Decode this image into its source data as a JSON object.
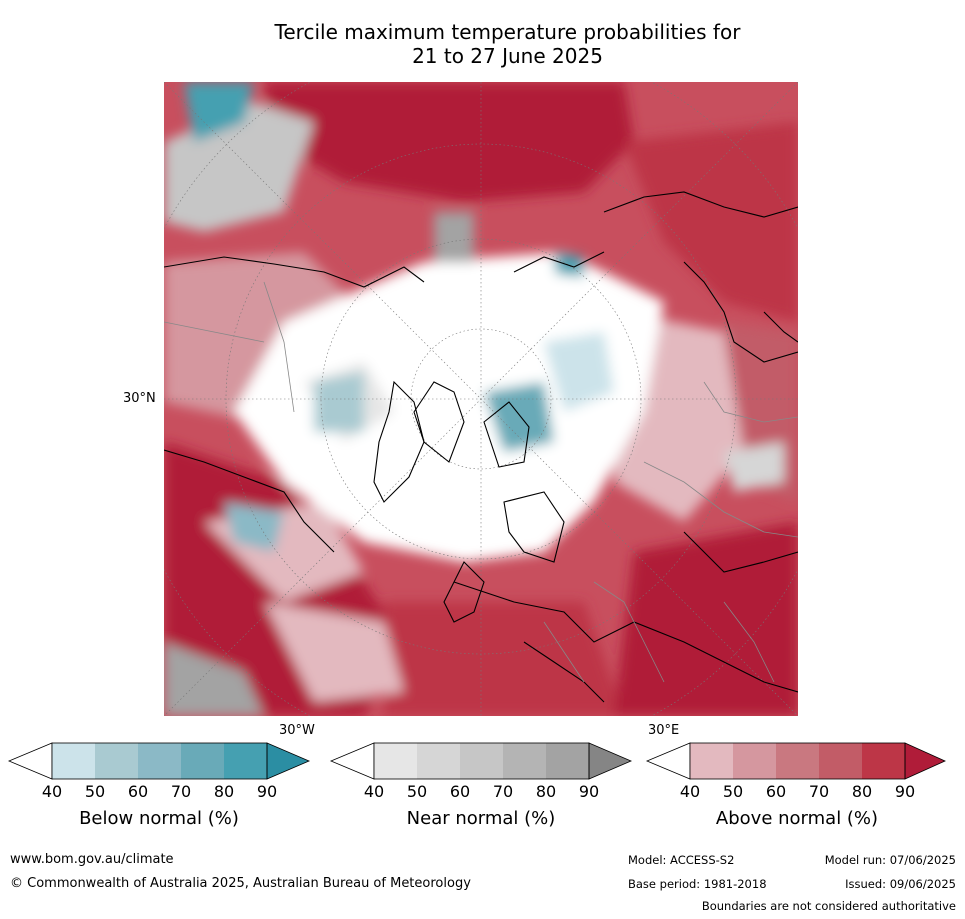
{
  "title": {
    "line1": "Tercile maximum temperature probabilities for",
    "line2": "21 to 27 June 2025"
  },
  "map": {
    "projection": "north polar stereographic",
    "lat_label": "30°N",
    "lon_labels": {
      "west": "30°W",
      "east": "30°E"
    }
  },
  "legends": [
    {
      "title": "Below normal (%)",
      "ticks": [
        "40",
        "50",
        "60",
        "70",
        "80",
        "90"
      ],
      "colors": [
        "#cce3ea",
        "#a9cad1",
        "#8bb9c6",
        "#69aab8",
        "#45a0b1",
        "#2b8ea3"
      ]
    },
    {
      "title": "Near normal (%)",
      "ticks": [
        "40",
        "50",
        "60",
        "70",
        "80",
        "90"
      ],
      "colors": [
        "#e6e6e6",
        "#d6d6d6",
        "#c6c6c6",
        "#b4b4b4",
        "#a3a3a3",
        "#858585"
      ]
    },
    {
      "title": "Above normal (%)",
      "ticks": [
        "40",
        "50",
        "60",
        "70",
        "80",
        "90"
      ],
      "colors": [
        "#e3b9bf",
        "#d5979f",
        "#c97880",
        "#c25c67",
        "#bd3647",
        "#b01c39"
      ]
    }
  ],
  "footer": {
    "url": "www.bom.gov.au/climate",
    "copyright": "© Commonwealth of Australia 2025, Australian Bureau of Meteorology",
    "model": "Model: ACCESS-S2",
    "base_period": "Base period: 1981-2018",
    "model_run": "Model run: 07/06/2025",
    "issued": "Issued: 09/06/2025",
    "disclaimer": "Boundaries are not considered authoritative"
  }
}
